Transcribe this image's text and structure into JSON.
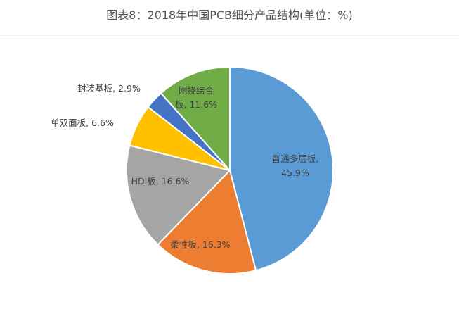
{
  "chart_data": {
    "type": "pie",
    "title": "图表8：2018年中国PCB细分产品结构(单位：%)",
    "start": "12 o'clock, clockwise",
    "slices": [
      {
        "label": "普通多层板",
        "value": 45.9,
        "display": [
          "普通多层板,",
          "45.9%"
        ],
        "color": "#5B9BD5"
      },
      {
        "label": "柔性板",
        "value": 16.3,
        "display": [
          "柔性板, 16.3%"
        ],
        "color": "#ED7D31"
      },
      {
        "label": "HDI板",
        "value": 16.6,
        "display": [
          "HDI板, 16.6%"
        ],
        "color": "#A5A5A5"
      },
      {
        "label": "单双面板",
        "value": 6.6,
        "display": [
          "单双面板, 6.6%"
        ],
        "color": "#FFC000"
      },
      {
        "label": "封装基板",
        "value": 2.9,
        "display": [
          "封装基板, 2.9%"
        ],
        "color": "#4472C4"
      },
      {
        "label": "刚挠结合板",
        "value": 11.6,
        "display": [
          "刚挠结合",
          "板, 11.6%"
        ],
        "color": "#70AD47"
      }
    ]
  }
}
